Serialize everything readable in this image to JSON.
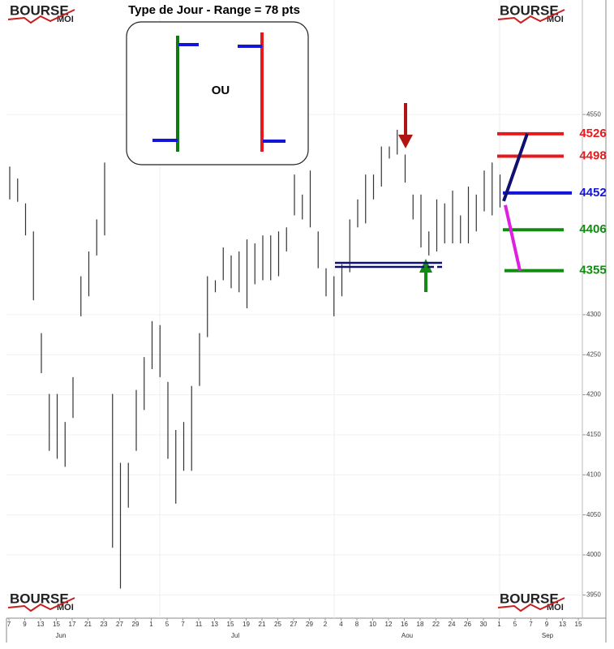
{
  "chart_data": {
    "type": "ohlc",
    "title": "Type de Jour - Range = 78 pts",
    "box_text": "OU",
    "watermark": "BOURSE",
    "watermark_sub": "MOI",
    "x_labels": [
      "7",
      "9",
      "13",
      "15",
      "17",
      "21",
      "23",
      "27",
      "29",
      "1",
      "5",
      "7",
      "11",
      "13",
      "15",
      "19",
      "21",
      "25",
      "27",
      "29",
      "2",
      "4",
      "8",
      "10",
      "12",
      "16",
      "18",
      "22",
      "24",
      "26",
      "30",
      "1",
      "5",
      "7",
      "9",
      "13",
      "15"
    ],
    "months": [
      "Jun",
      "Jul",
      "Aou",
      "Sep"
    ],
    "series": [
      {
        "color": "#333333",
        "high": [
          4485,
          4470,
          4439,
          4404,
          4277,
          4201,
          4201,
          4166,
          4222,
          4348,
          4379,
          4419,
          4490,
          4201,
          4115,
          4115,
          4206,
          4247,
          4292,
          4287,
          4216,
          4156,
          4166,
          4211,
          4277,
          4348,
          4343,
          4384,
          4374,
          4379,
          4394,
          4389,
          4399,
          4399,
          4404,
          4409,
          4475,
          4450,
          4480,
          4404,
          4358,
          4348,
          4363,
          4419,
          4444,
          4475,
          4475,
          4510,
          4510,
          4531,
          4500,
          4450,
          4450,
          4404,
          4444,
          4439,
          4455,
          4424,
          4460,
          4450,
          4480,
          4490,
          4475
        ],
        "low": [
          4444,
          4441,
          4399,
          4318,
          4227,
          4130,
          4120,
          4110,
          4171,
          4298,
          4323,
          4374,
          4399,
          4009,
          3958,
          4059,
          4130,
          4181,
          4232,
          4222,
          4120,
          4064,
          4105,
          4105,
          4211,
          4272,
          4328,
          4343,
          4333,
          4328,
          4308,
          4338,
          4343,
          4343,
          4348,
          4379,
          4424,
          4419,
          4409,
          4358,
          4323,
          4298,
          4323,
          4353,
          4409,
          4414,
          4444,
          4460,
          4495,
          4500,
          4465,
          4419,
          4384,
          4374,
          4379,
          4389,
          4389,
          4389,
          4389,
          4404,
          4429,
          4424,
          4434
        ]
      }
    ],
    "ylim": [
      3923,
      4693
    ],
    "yticks": [
      3950,
      4000,
      4050,
      4100,
      4150,
      4200,
      4250,
      4300,
      4550
    ],
    "grid": true,
    "levels": [
      {
        "value": 4526,
        "color": "#e8191b"
      },
      {
        "value": 4498,
        "color": "#e8191b"
      },
      {
        "value": 4452,
        "color": "#1515d8"
      },
      {
        "value": 4406,
        "color": "#138a13"
      },
      {
        "value": 4355,
        "color": "#138a13"
      }
    ]
  }
}
